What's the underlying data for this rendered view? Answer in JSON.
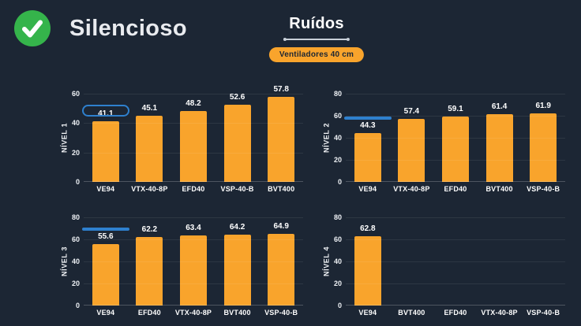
{
  "header": {
    "status_label": "Silencioso",
    "title": "Ruídos",
    "badge_label": "Ventiladores 40 cm"
  },
  "colors": {
    "background": "#1c2634",
    "bar": "#f9a42c",
    "highlight_border": "#2e80ce",
    "check_green": "#35b44b",
    "badge_bg": "#f9a42c",
    "badge_text": "#1c2634",
    "text": "#ffffff"
  },
  "chart_data": [
    {
      "type": "bar",
      "ylabel": "NÍVEL 1",
      "ylim": [
        0,
        60
      ],
      "yticks": [
        0,
        20,
        40,
        60
      ],
      "grid": true,
      "categories": [
        "VE94",
        "VTX-40-8P",
        "EFD40",
        "VSP-40-B",
        "BVT400"
      ],
      "values": [
        41.1,
        45.1,
        48.2,
        52.6,
        57.8
      ],
      "highlight_category": "VE94"
    },
    {
      "type": "bar",
      "ylabel": "NÍVEL 2",
      "ylim": [
        0,
        80
      ],
      "yticks": [
        0,
        20,
        40,
        60,
        80
      ],
      "grid": true,
      "categories": [
        "VE94",
        "VTX-40-8P",
        "EFD40",
        "BVT400",
        "VSP-40-B"
      ],
      "values": [
        44.3,
        57.4,
        59.1,
        61.4,
        61.9
      ],
      "highlight_category": "VE94"
    },
    {
      "type": "bar",
      "ylabel": "NÍVEL 3",
      "ylim": [
        0,
        80
      ],
      "yticks": [
        0,
        20,
        40,
        60,
        80
      ],
      "grid": true,
      "categories": [
        "VE94",
        "EFD40",
        "VTX-40-8P",
        "BVT400",
        "VSP-40-B"
      ],
      "values": [
        55.6,
        62.2,
        63.4,
        64.2,
        64.9
      ],
      "highlight_category": "VE94"
    },
    {
      "type": "bar",
      "ylabel": "NÍVEL 4",
      "ylim": [
        0,
        80
      ],
      "yticks": [
        0,
        20,
        40,
        60,
        80
      ],
      "grid": true,
      "categories": [
        "VE94",
        "BVT400",
        "EFD40",
        "VTX-40-8P",
        "VSP-40-B"
      ],
      "values": [
        62.8,
        null,
        null,
        null,
        null
      ],
      "highlight_category": null
    }
  ]
}
